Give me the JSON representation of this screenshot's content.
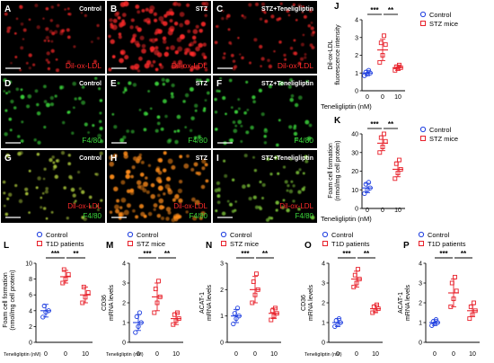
{
  "colors": {
    "control": "#1f3fe0",
    "disease": "#e8202a",
    "red_stain": "#ff2a2a",
    "green_stain": "#3cd83c",
    "merge_stain": "#ff8c1a",
    "sig_line": "#000000"
  },
  "micrographs": [
    {
      "id": "A",
      "label": "A",
      "condition": "Control",
      "stain": "Dil-ox-LDL",
      "stain2": ""
    },
    {
      "id": "B",
      "label": "B",
      "condition": "STZ",
      "stain": "Dil-ox-LDL",
      "stain2": ""
    },
    {
      "id": "C",
      "label": "C",
      "condition": "STZ+Teneligliptin",
      "stain": "Dil-ox-LDL",
      "stain2": ""
    },
    {
      "id": "D",
      "label": "D",
      "condition": "Control",
      "stain": "F4/80",
      "stain2": ""
    },
    {
      "id": "E",
      "label": "E",
      "condition": "STZ",
      "stain": "F4/80",
      "stain2": ""
    },
    {
      "id": "F",
      "label": "F",
      "condition": "STZ+Teneligliptin",
      "stain": "F4/80",
      "stain2": ""
    },
    {
      "id": "G",
      "label": "G",
      "condition": "Control",
      "stain": "Dil-ox-LDL",
      "stain2": "F4/80"
    },
    {
      "id": "H",
      "label": "H",
      "condition": "STZ",
      "stain": "Dil-ox-LDL",
      "stain2": "F4/80"
    },
    {
      "id": "I",
      "label": "I",
      "condition": "STZ+Teneligliptin",
      "stain": "Dil-ox-LDL",
      "stain2": "F4/80"
    }
  ],
  "chart_data": [
    {
      "type": "scatter",
      "panel": "J",
      "ylabel": "Dil-ox-LDL fluorescence intensity",
      "xlabel": "Teneligliptin (nM)",
      "categories": [
        "0",
        "0",
        "10"
      ],
      "ylim": [
        0,
        4
      ],
      "yticks": [
        0,
        1,
        2,
        3,
        4
      ],
      "legend": [
        "Control",
        "STZ mice"
      ],
      "groups": [
        {
          "series": "Control",
          "mean": 1.0,
          "sd": 0.15,
          "points": [
            0.85,
            0.95,
            1.0,
            1.05,
            1.15
          ]
        },
        {
          "series": "STZ mice",
          "mean": 2.3,
          "sd": 0.6,
          "points": [
            1.6,
            2.0,
            2.6,
            2.7,
            3.1
          ]
        },
        {
          "series": "STZ mice",
          "mean": 1.3,
          "sd": 0.15,
          "points": [
            1.15,
            1.25,
            1.3,
            1.35,
            1.45
          ]
        }
      ],
      "significance": [
        {
          "a": 0,
          "b": 1,
          "label": "***"
        },
        {
          "a": 1,
          "b": 2,
          "label": "**"
        }
      ]
    },
    {
      "type": "scatter",
      "panel": "K",
      "ylabel": "Foam cell formation (nmol/mg cell protein)",
      "xlabel": "Teneligliptin (nM)",
      "categories": [
        "0",
        "0",
        "10"
      ],
      "ylim": [
        0,
        40
      ],
      "yticks": [
        0,
        10,
        20,
        30,
        40
      ],
      "legend": [
        "Control",
        "STZ mice"
      ],
      "groups": [
        {
          "series": "Control",
          "mean": 11,
          "sd": 2.5,
          "points": [
            8,
            10,
            11,
            13,
            14
          ]
        },
        {
          "series": "STZ mice",
          "mean": 35,
          "sd": 4,
          "points": [
            30,
            33,
            36,
            38,
            40
          ]
        },
        {
          "series": "STZ mice",
          "mean": 21,
          "sd": 4,
          "points": [
            16,
            19,
            21,
            24,
            26
          ]
        }
      ],
      "significance": [
        {
          "a": 0,
          "b": 1,
          "label": "***"
        },
        {
          "a": 1,
          "b": 2,
          "label": "**"
        }
      ]
    },
    {
      "type": "scatter",
      "panel": "L",
      "ylabel": "Foam cell formation (nmol/mg cell protein)",
      "xlabel": "Teneligliptin (nM)",
      "categories": [
        "0",
        "0",
        "10"
      ],
      "ylim": [
        0,
        10
      ],
      "yticks": [
        0,
        2,
        4,
        6,
        8,
        10
      ],
      "legend": [
        "Control",
        "T1D patients"
      ],
      "groups": [
        {
          "series": "Control",
          "mean": 4,
          "sd": 0.8,
          "points": [
            3.2,
            3.8,
            4.0,
            4.6
          ]
        },
        {
          "series": "T1D patients",
          "mean": 8.3,
          "sd": 0.8,
          "points": [
            7.5,
            8.0,
            8.6,
            9.2
          ]
        },
        {
          "series": "T1D patients",
          "mean": 6,
          "sd": 1,
          "points": [
            5.0,
            5.7,
            6.3,
            7.0
          ]
        }
      ],
      "significance": [
        {
          "a": 0,
          "b": 1,
          "label": "***"
        },
        {
          "a": 1,
          "b": 2,
          "label": "**"
        }
      ]
    },
    {
      "type": "scatter",
      "panel": "M",
      "ylabel": "CD36 mRNA levels",
      "xlabel": "Teneligliptin (nM)",
      "categories": [
        "0",
        "0",
        "10"
      ],
      "ylim": [
        0,
        4
      ],
      "yticks": [
        0,
        1,
        2,
        3,
        4
      ],
      "legend": [
        "Control",
        "STZ mice"
      ],
      "groups": [
        {
          "series": "Control",
          "mean": 1.0,
          "sd": 0.4,
          "points": [
            0.5,
            0.8,
            1.0,
            1.3,
            1.5
          ]
        },
        {
          "series": "STZ mice",
          "mean": 2.3,
          "sd": 0.7,
          "points": [
            1.5,
            2.0,
            2.3,
            2.7,
            3.1
          ]
        },
        {
          "series": "STZ mice",
          "mean": 1.2,
          "sd": 0.3,
          "points": [
            0.9,
            1.1,
            1.2,
            1.4,
            1.5
          ]
        }
      ],
      "significance": [
        {
          "a": 0,
          "b": 1,
          "label": "***"
        },
        {
          "a": 1,
          "b": 2,
          "label": "**"
        }
      ]
    },
    {
      "type": "scatter",
      "panel": "N",
      "ylabel": "ACAT-1 mRNA levels",
      "xlabel": "",
      "categories": [
        "0",
        "0",
        "10"
      ],
      "ylim": [
        0,
        3
      ],
      "yticks": [
        0,
        1,
        2,
        3
      ],
      "legend": [
        "Control",
        "STZ mice"
      ],
      "groups": [
        {
          "series": "Control",
          "mean": 1.0,
          "sd": 0.25,
          "points": [
            0.7,
            0.9,
            1.0,
            1.1,
            1.3
          ]
        },
        {
          "series": "STZ mice",
          "mean": 2.0,
          "sd": 0.5,
          "points": [
            1.5,
            1.8,
            2.0,
            2.3,
            2.6
          ]
        },
        {
          "series": "STZ mice",
          "mean": 1.1,
          "sd": 0.2,
          "points": [
            0.85,
            1.0,
            1.1,
            1.2,
            1.3
          ]
        }
      ],
      "significance": [
        {
          "a": 0,
          "b": 1,
          "label": "***"
        },
        {
          "a": 1,
          "b": 2,
          "label": "**"
        }
      ]
    },
    {
      "type": "scatter",
      "panel": "O",
      "ylabel": "CD36 mRNA levels",
      "xlabel": "Teneligliptin (nM)",
      "categories": [
        "0",
        "0",
        "10"
      ],
      "ylim": [
        0,
        4
      ],
      "yticks": [
        0,
        1,
        2,
        3,
        4
      ],
      "legend": [
        "Control",
        "T1D patients"
      ],
      "groups": [
        {
          "series": "Control",
          "mean": 1.0,
          "sd": 0.2,
          "points": [
            0.8,
            0.9,
            1.0,
            1.1,
            1.2
          ]
        },
        {
          "series": "T1D patients",
          "mean": 3.2,
          "sd": 0.4,
          "points": [
            2.8,
            3.0,
            3.2,
            3.4,
            3.7
          ]
        },
        {
          "series": "T1D patients",
          "mean": 1.7,
          "sd": 0.2,
          "points": [
            1.5,
            1.6,
            1.7,
            1.8,
            1.9
          ]
        }
      ],
      "significance": [
        {
          "a": 0,
          "b": 1,
          "label": "***"
        },
        {
          "a": 1,
          "b": 2,
          "label": "**"
        }
      ]
    },
    {
      "type": "scatter",
      "panel": "P",
      "ylabel": "ACAT-1 mRNA levels",
      "xlabel": "",
      "categories": [
        "0",
        "0",
        "10"
      ],
      "ylim": [
        0,
        4
      ],
      "yticks": [
        0,
        1,
        2,
        3,
        4
      ],
      "legend": [
        "Control",
        "T1D patients"
      ],
      "groups": [
        {
          "series": "Control",
          "mean": 1.0,
          "sd": 0.15,
          "points": [
            0.85,
            0.95,
            1.0,
            1.05,
            1.15
          ]
        },
        {
          "series": "T1D patients",
          "mean": 2.5,
          "sd": 0.7,
          "points": [
            1.8,
            2.2,
            2.6,
            3.0,
            3.3
          ]
        },
        {
          "series": "T1D patients",
          "mean": 1.6,
          "sd": 0.3,
          "points": [
            1.2,
            1.4,
            1.6,
            1.8,
            2.0
          ]
        }
      ],
      "significance": [
        {
          "a": 0,
          "b": 1,
          "label": "***"
        },
        {
          "a": 1,
          "b": 2,
          "label": "**"
        }
      ]
    }
  ]
}
